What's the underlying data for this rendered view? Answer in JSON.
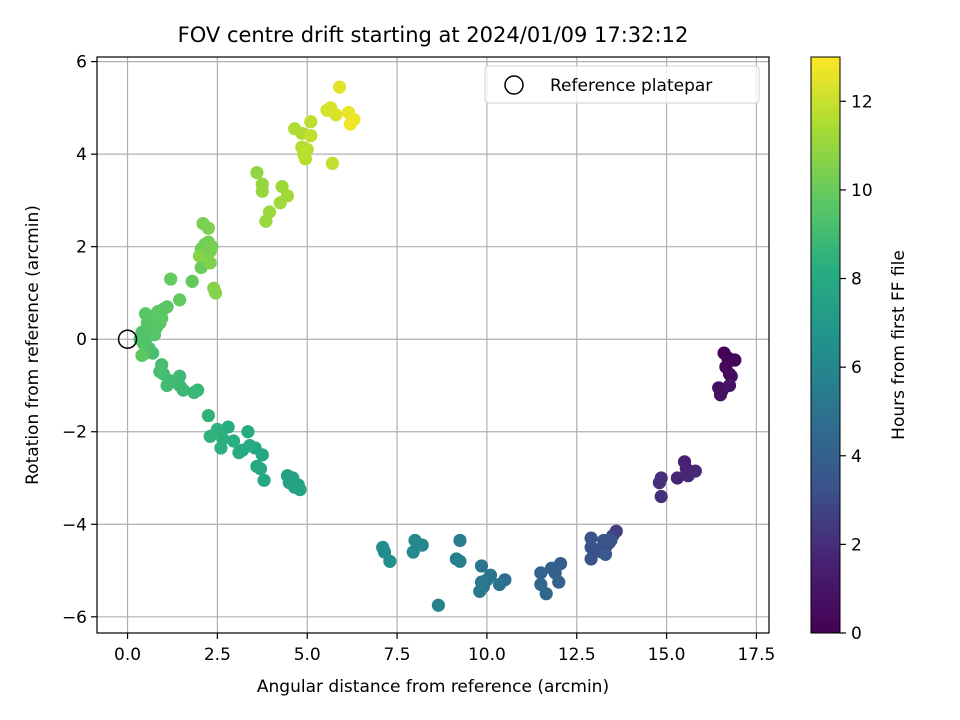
{
  "chart_data": {
    "type": "scatter",
    "title": "FOV centre drift starting at 2024/01/09 17:32:12",
    "xlabel": "Angular distance from reference (arcmin)",
    "ylabel": "Rotation from reference (arcmin)",
    "xlim": [
      -0.85,
      17.85
    ],
    "ylim": [
      -6.35,
      6.1
    ],
    "xticks": [
      0.0,
      2.5,
      5.0,
      7.5,
      10.0,
      12.5,
      15.0,
      17.5
    ],
    "xtick_labels": [
      "0.0",
      "2.5",
      "5.0",
      "7.5",
      "10.0",
      "12.5",
      "15.0",
      "17.5"
    ],
    "yticks": [
      -6,
      -4,
      -2,
      0,
      2,
      4,
      6
    ],
    "ytick_labels": [
      "−6",
      "−4",
      "−2",
      "0",
      "2",
      "4",
      "6"
    ],
    "grid": true,
    "colormap": "viridis",
    "colorbar": {
      "label": "Hours from first FF file",
      "range": [
        0,
        13
      ],
      "ticks": [
        0,
        2,
        4,
        6,
        8,
        10,
        12
      ],
      "tick_labels": [
        "0",
        "2",
        "4",
        "6",
        "8",
        "10",
        "12"
      ]
    },
    "legend": {
      "position": "top-right",
      "entries": [
        {
          "label": "Reference platepar",
          "marker": "open-circle"
        }
      ]
    },
    "reference_point": {
      "x": 0.0,
      "y": 0.0
    },
    "series": [
      {
        "color_by": "hours",
        "points": [
          {
            "x": 16.6,
            "y": -0.3,
            "h": 0.1
          },
          {
            "x": 16.7,
            "y": -0.4,
            "h": 0.2
          },
          {
            "x": 16.9,
            "y": -0.45,
            "h": 0.3
          },
          {
            "x": 16.65,
            "y": -0.6,
            "h": 0.35
          },
          {
            "x": 16.75,
            "y": -0.75,
            "h": 0.45
          },
          {
            "x": 16.8,
            "y": -0.8,
            "h": 0.5
          },
          {
            "x": 16.45,
            "y": -1.05,
            "h": 0.6
          },
          {
            "x": 16.55,
            "y": -1.1,
            "h": 0.7
          },
          {
            "x": 16.5,
            "y": -1.2,
            "h": 0.75
          },
          {
            "x": 16.75,
            "y": -1.0,
            "h": 0.85
          },
          {
            "x": 15.5,
            "y": -2.65,
            "h": 1.5
          },
          {
            "x": 15.55,
            "y": -2.8,
            "h": 1.6
          },
          {
            "x": 15.3,
            "y": -3.0,
            "h": 1.7
          },
          {
            "x": 15.6,
            "y": -2.95,
            "h": 1.8
          },
          {
            "x": 15.8,
            "y": -2.85,
            "h": 1.9
          },
          {
            "x": 14.85,
            "y": -3.0,
            "h": 2.0
          },
          {
            "x": 14.8,
            "y": -3.1,
            "h": 2.05
          },
          {
            "x": 14.85,
            "y": -3.4,
            "h": 2.1
          },
          {
            "x": 13.6,
            "y": -4.15,
            "h": 2.6
          },
          {
            "x": 13.5,
            "y": -4.25,
            "h": 2.7
          },
          {
            "x": 13.4,
            "y": -4.4,
            "h": 2.8
          },
          {
            "x": 13.3,
            "y": -4.5,
            "h": 2.9
          },
          {
            "x": 13.2,
            "y": -4.6,
            "h": 3.0
          },
          {
            "x": 13.05,
            "y": -4.55,
            "h": 3.1
          },
          {
            "x": 12.9,
            "y": -4.5,
            "h": 3.2
          },
          {
            "x": 12.9,
            "y": -4.75,
            "h": 3.3
          },
          {
            "x": 12.9,
            "y": -4.3,
            "h": 3.35
          },
          {
            "x": 13.25,
            "y": -4.35,
            "h": 3.45
          },
          {
            "x": 13.45,
            "y": -4.35,
            "h": 3.5
          },
          {
            "x": 13.3,
            "y": -4.65,
            "h": 3.6
          },
          {
            "x": 12.05,
            "y": -4.85,
            "h": 3.9
          },
          {
            "x": 11.8,
            "y": -4.95,
            "h": 4.0
          },
          {
            "x": 11.9,
            "y": -5.05,
            "h": 4.05
          },
          {
            "x": 12.0,
            "y": -5.25,
            "h": 4.1
          },
          {
            "x": 11.5,
            "y": -5.05,
            "h": 4.2
          },
          {
            "x": 11.5,
            "y": -5.3,
            "h": 4.3
          },
          {
            "x": 11.65,
            "y": -5.5,
            "h": 4.35
          },
          {
            "x": 10.5,
            "y": -5.2,
            "h": 4.8
          },
          {
            "x": 10.35,
            "y": -5.3,
            "h": 4.9
          },
          {
            "x": 10.1,
            "y": -5.1,
            "h": 5.0
          },
          {
            "x": 10.0,
            "y": -5.2,
            "h": 5.05
          },
          {
            "x": 9.9,
            "y": -5.35,
            "h": 5.1
          },
          {
            "x": 9.85,
            "y": -4.9,
            "h": 5.15
          },
          {
            "x": 9.85,
            "y": -5.25,
            "h": 5.2
          },
          {
            "x": 9.8,
            "y": -5.45,
            "h": 5.3
          },
          {
            "x": 9.25,
            "y": -4.35,
            "h": 5.55
          },
          {
            "x": 9.15,
            "y": -4.75,
            "h": 5.6
          },
          {
            "x": 9.25,
            "y": -4.8,
            "h": 5.65
          },
          {
            "x": 8.65,
            "y": -5.75,
            "h": 5.8
          },
          {
            "x": 8.2,
            "y": -4.45,
            "h": 6.0
          },
          {
            "x": 8.0,
            "y": -4.35,
            "h": 6.05
          },
          {
            "x": 7.95,
            "y": -4.6,
            "h": 6.1
          },
          {
            "x": 7.1,
            "y": -4.5,
            "h": 6.3
          },
          {
            "x": 7.15,
            "y": -4.6,
            "h": 6.35
          },
          {
            "x": 7.3,
            "y": -4.8,
            "h": 6.45
          },
          {
            "x": 4.45,
            "y": -2.95,
            "h": 7.4
          },
          {
            "x": 4.6,
            "y": -3.0,
            "h": 7.45
          },
          {
            "x": 4.5,
            "y": -3.1,
            "h": 7.5
          },
          {
            "x": 4.75,
            "y": -3.15,
            "h": 7.55
          },
          {
            "x": 4.8,
            "y": -3.25,
            "h": 7.6
          },
          {
            "x": 4.65,
            "y": -3.2,
            "h": 7.65
          },
          {
            "x": 3.55,
            "y": -2.35,
            "h": 7.75
          },
          {
            "x": 3.75,
            "y": -2.5,
            "h": 7.8
          },
          {
            "x": 3.7,
            "y": -2.8,
            "h": 7.85
          },
          {
            "x": 3.8,
            "y": -3.05,
            "h": 7.9
          },
          {
            "x": 3.6,
            "y": -2.75,
            "h": 7.95
          },
          {
            "x": 3.35,
            "y": -2.0,
            "h": 8.0
          },
          {
            "x": 3.4,
            "y": -2.3,
            "h": 8.05
          },
          {
            "x": 3.2,
            "y": -2.4,
            "h": 8.1
          },
          {
            "x": 3.1,
            "y": -2.45,
            "h": 8.15
          },
          {
            "x": 2.8,
            "y": -1.9,
            "h": 8.2
          },
          {
            "x": 2.95,
            "y": -2.2,
            "h": 8.25
          },
          {
            "x": 2.65,
            "y": -2.15,
            "h": 8.3
          },
          {
            "x": 2.6,
            "y": -2.35,
            "h": 8.35
          },
          {
            "x": 2.5,
            "y": -1.95,
            "h": 8.4
          },
          {
            "x": 2.3,
            "y": -2.1,
            "h": 8.45
          },
          {
            "x": 2.25,
            "y": -1.65,
            "h": 8.5
          },
          {
            "x": 1.95,
            "y": -1.1,
            "h": 8.7
          },
          {
            "x": 1.85,
            "y": -1.15,
            "h": 8.75
          },
          {
            "x": 1.55,
            "y": -1.1,
            "h": 8.8
          },
          {
            "x": 1.45,
            "y": -1.0,
            "h": 8.85
          },
          {
            "x": 1.45,
            "y": -0.8,
            "h": 8.9
          },
          {
            "x": 1.2,
            "y": -0.9,
            "h": 8.95
          },
          {
            "x": 1.1,
            "y": -1.0,
            "h": 9.0
          },
          {
            "x": 1.0,
            "y": -0.75,
            "h": 9.05
          },
          {
            "x": 0.95,
            "y": -0.55,
            "h": 9.1
          },
          {
            "x": 0.9,
            "y": -0.7,
            "h": 9.15
          },
          {
            "x": 0.7,
            "y": -0.3,
            "h": 9.2
          },
          {
            "x": 0.6,
            "y": -0.2,
            "h": 9.25
          },
          {
            "x": 0.5,
            "y": -0.3,
            "h": 9.3
          },
          {
            "x": 0.35,
            "y": 0.0,
            "h": 9.35
          },
          {
            "x": 0.4,
            "y": 0.15,
            "h": 9.4
          },
          {
            "x": 0.55,
            "y": 0.05,
            "h": 9.42
          },
          {
            "x": 0.45,
            "y": -0.1,
            "h": 9.45
          },
          {
            "x": 0.6,
            "y": 0.2,
            "h": 9.48
          },
          {
            "x": 0.7,
            "y": 0.3,
            "h": 9.5
          },
          {
            "x": 0.55,
            "y": 0.35,
            "h": 9.52
          },
          {
            "x": 0.75,
            "y": 0.1,
            "h": 9.55
          },
          {
            "x": 0.8,
            "y": 0.25,
            "h": 9.58
          },
          {
            "x": 0.9,
            "y": 0.35,
            "h": 9.6
          },
          {
            "x": 0.5,
            "y": 0.55,
            "h": 9.62
          },
          {
            "x": 0.7,
            "y": 0.5,
            "h": 9.65
          },
          {
            "x": 0.85,
            "y": 0.6,
            "h": 9.68
          },
          {
            "x": 1.0,
            "y": 0.65,
            "h": 9.7
          },
          {
            "x": 1.1,
            "y": 0.7,
            "h": 9.72
          },
          {
            "x": 0.95,
            "y": 0.45,
            "h": 9.75
          },
          {
            "x": 0.4,
            "y": -0.35,
            "h": 9.78
          },
          {
            "x": 1.45,
            "y": 0.85,
            "h": 9.85
          },
          {
            "x": 1.2,
            "y": 1.3,
            "h": 9.9
          },
          {
            "x": 1.8,
            "y": 1.25,
            "h": 9.95
          },
          {
            "x": 2.05,
            "y": 1.55,
            "h": 10.05
          },
          {
            "x": 2.1,
            "y": 1.75,
            "h": 10.1
          },
          {
            "x": 2.05,
            "y": 1.95,
            "h": 10.15
          },
          {
            "x": 2.15,
            "y": 2.05,
            "h": 10.2
          },
          {
            "x": 2.25,
            "y": 2.1,
            "h": 10.25
          },
          {
            "x": 2.3,
            "y": 1.9,
            "h": 10.3
          },
          {
            "x": 2.35,
            "y": 2.0,
            "h": 10.35
          },
          {
            "x": 2.1,
            "y": 2.5,
            "h": 10.4
          },
          {
            "x": 2.25,
            "y": 2.4,
            "h": 10.45
          },
          {
            "x": 2.3,
            "y": 1.65,
            "h": 10.5
          },
          {
            "x": 2.4,
            "y": 1.1,
            "h": 10.6
          },
          {
            "x": 2.45,
            "y": 1.0,
            "h": 10.65
          },
          {
            "x": 2.0,
            "y": 1.8,
            "h": 10.68
          },
          {
            "x": 3.6,
            "y": 3.6,
            "h": 10.9
          },
          {
            "x": 3.75,
            "y": 3.35,
            "h": 10.95
          },
          {
            "x": 3.75,
            "y": 3.2,
            "h": 11.0
          },
          {
            "x": 3.85,
            "y": 2.55,
            "h": 11.05
          },
          {
            "x": 3.95,
            "y": 2.75,
            "h": 11.1
          },
          {
            "x": 4.25,
            "y": 2.95,
            "h": 11.15
          },
          {
            "x": 4.3,
            "y": 3.3,
            "h": 11.2
          },
          {
            "x": 4.45,
            "y": 3.1,
            "h": 11.25
          },
          {
            "x": 4.65,
            "y": 4.55,
            "h": 11.5
          },
          {
            "x": 4.85,
            "y": 4.45,
            "h": 11.55
          },
          {
            "x": 4.85,
            "y": 4.15,
            "h": 11.6
          },
          {
            "x": 4.95,
            "y": 3.9,
            "h": 11.65
          },
          {
            "x": 4.9,
            "y": 4.0,
            "h": 11.7
          },
          {
            "x": 5.0,
            "y": 4.1,
            "h": 11.75
          },
          {
            "x": 5.1,
            "y": 4.7,
            "h": 11.8
          },
          {
            "x": 5.1,
            "y": 4.4,
            "h": 11.85
          },
          {
            "x": 5.7,
            "y": 3.8,
            "h": 11.9
          },
          {
            "x": 5.55,
            "y": 4.95,
            "h": 12.2
          },
          {
            "x": 5.65,
            "y": 5.0,
            "h": 12.3
          },
          {
            "x": 5.8,
            "y": 4.85,
            "h": 12.35
          },
          {
            "x": 5.9,
            "y": 5.45,
            "h": 12.5
          },
          {
            "x": 6.15,
            "y": 4.9,
            "h": 12.6
          },
          {
            "x": 6.3,
            "y": 4.75,
            "h": 12.7
          },
          {
            "x": 6.2,
            "y": 4.65,
            "h": 12.8
          }
        ]
      }
    ]
  }
}
